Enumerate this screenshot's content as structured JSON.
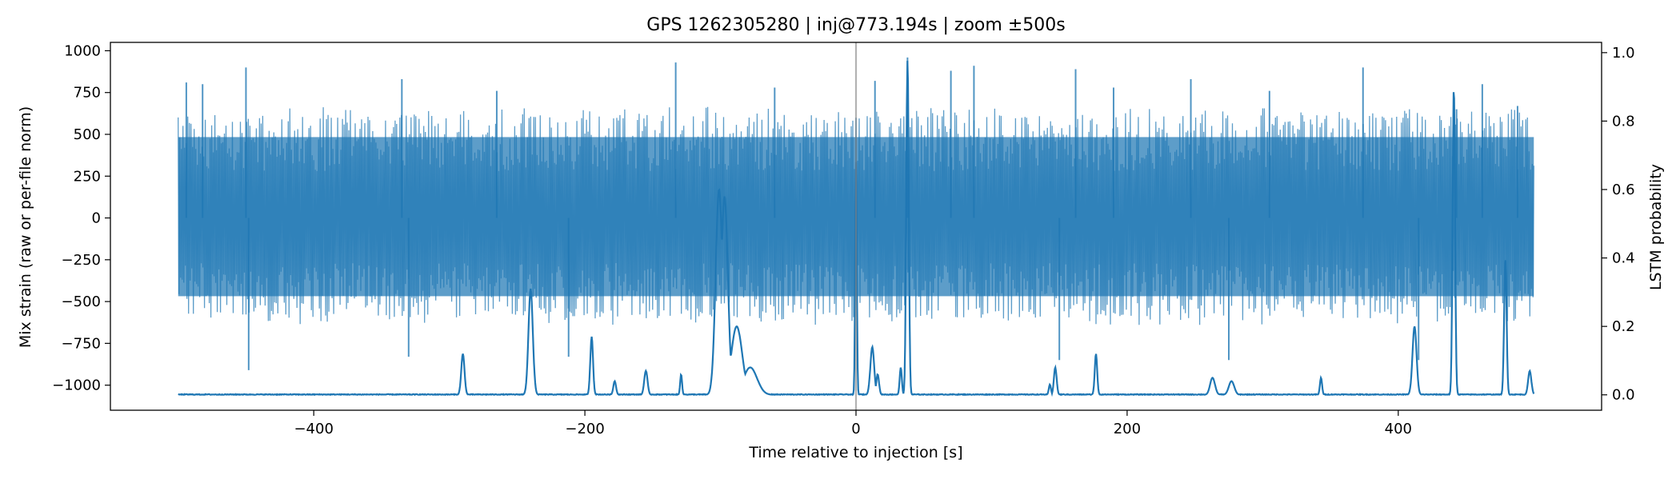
{
  "chart_data": {
    "type": "line",
    "title": "GPS 1262305280 | inj@773.194s | zoom ±500s",
    "xlabel": "Time relative to injection [s]",
    "ylabel_left": "Mix strain (raw or per-file norm)",
    "ylabel_right": "LSTM probability",
    "xlim": [
      -550,
      550
    ],
    "ylim_left": [
      -1150,
      1050
    ],
    "ylim_right": [
      -0.045,
      1.03
    ],
    "x_ticks": [
      -400,
      -200,
      0,
      200,
      400
    ],
    "x_tick_labels": [
      "−400",
      "−200",
      "0",
      "200",
      "400"
    ],
    "y_left_ticks": [
      1000,
      750,
      500,
      250,
      0,
      -250,
      -500,
      -750,
      -1000
    ],
    "y_left_tick_labels": [
      "1000",
      "750",
      "500",
      "250",
      "0",
      "−250",
      "−500",
      "−750",
      "−1000"
    ],
    "y_right_ticks": [
      1.0,
      0.8,
      0.6,
      0.4,
      0.2,
      0.0
    ],
    "y_right_tick_labels": [
      "1.0",
      "0.8",
      "0.6",
      "0.4",
      "0.2",
      "0.0"
    ],
    "injection_marker_x": 0,
    "grid": false,
    "legend": "none",
    "colors": {
      "strain": "#1f77b4",
      "probability": "#1f77b4",
      "marker": "#808080"
    },
    "series": [
      {
        "axis": "left",
        "style": "dense-noise",
        "x_range": [
          -500,
          500
        ],
        "typical_range": [
          -600,
          620
        ],
        "peaks": [
          {
            "x": -494,
            "y": 810
          },
          {
            "x": -482,
            "y": 800
          },
          {
            "x": -450,
            "y": 900
          },
          {
            "x": -448,
            "y": -910
          },
          {
            "x": -335,
            "y": 830
          },
          {
            "x": -330,
            "y": -830
          },
          {
            "x": -265,
            "y": 760
          },
          {
            "x": -212,
            "y": -830
          },
          {
            "x": -133,
            "y": 930
          },
          {
            "x": -60,
            "y": 780
          },
          {
            "x": 14,
            "y": 820
          },
          {
            "x": 38,
            "y": 960
          },
          {
            "x": 70,
            "y": 880
          },
          {
            "x": 87,
            "y": 910
          },
          {
            "x": 150,
            "y": -850
          },
          {
            "x": 162,
            "y": 890
          },
          {
            "x": 190,
            "y": 780
          },
          {
            "x": 247,
            "y": 830
          },
          {
            "x": 275,
            "y": -850
          },
          {
            "x": 305,
            "y": 760
          },
          {
            "x": 374,
            "y": 900
          },
          {
            "x": 415,
            "y": -850
          },
          {
            "x": 443,
            "y": 650
          },
          {
            "x": 462,
            "y": 800
          },
          {
            "x": 488,
            "y": 670
          }
        ]
      },
      {
        "axis": "right",
        "style": "probability-line",
        "baseline": 0.0,
        "x_range": [
          -500,
          500
        ],
        "peaks": [
          {
            "x": -290,
            "y": 0.12,
            "w": 1.2
          },
          {
            "x": -240,
            "y": 0.31,
            "w": 1.6
          },
          {
            "x": -195,
            "y": 0.17,
            "w": 1.0
          },
          {
            "x": -178,
            "y": 0.04,
            "w": 1.0
          },
          {
            "x": -155,
            "y": 0.07,
            "w": 1.2
          },
          {
            "x": -129,
            "y": 0.06,
            "w": 0.7
          },
          {
            "x": -101,
            "y": 0.6,
            "w": 2.5
          },
          {
            "x": -97,
            "y": 0.58,
            "w": 2.5
          },
          {
            "x": -88,
            "y": 0.2,
            "w": 4.0
          },
          {
            "x": -78,
            "y": 0.08,
            "w": 5.0
          },
          {
            "x": 0,
            "y": 0.68,
            "w": 0.6
          },
          {
            "x": 12,
            "y": 0.14,
            "w": 1.4
          },
          {
            "x": 16,
            "y": 0.06,
            "w": 1.0
          },
          {
            "x": 33,
            "y": 0.08,
            "w": 0.8
          },
          {
            "x": 38,
            "y": 0.98,
            "w": 0.9
          },
          {
            "x": 143,
            "y": 0.03,
            "w": 0.8
          },
          {
            "x": 147,
            "y": 0.08,
            "w": 1.0
          },
          {
            "x": 177,
            "y": 0.12,
            "w": 0.9
          },
          {
            "x": 263,
            "y": 0.05,
            "w": 1.8
          },
          {
            "x": 277,
            "y": 0.04,
            "w": 2.0
          },
          {
            "x": 343,
            "y": 0.05,
            "w": 0.8
          },
          {
            "x": 412,
            "y": 0.2,
            "w": 1.5
          },
          {
            "x": 441,
            "y": 0.9,
            "w": 0.9
          },
          {
            "x": 479,
            "y": 0.4,
            "w": 0.9
          },
          {
            "x": 497,
            "y": 0.07,
            "w": 1.2
          }
        ]
      }
    ]
  }
}
